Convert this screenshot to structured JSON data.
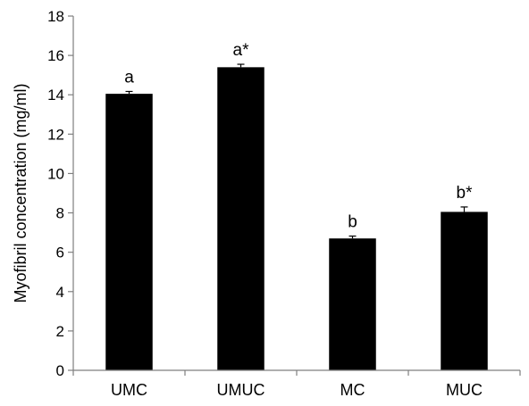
{
  "chart_data": {
    "type": "bar",
    "title": "",
    "xlabel": "",
    "ylabel": "Myofibril concentration (mg/ml)",
    "ylim": [
      0,
      18
    ],
    "ytick_step": 2,
    "yticks": [
      "0",
      "2",
      "4",
      "6",
      "8",
      "10",
      "12",
      "14",
      "16",
      "18"
    ],
    "categories": [
      "UMC",
      "UMUC",
      "MC",
      "MUC"
    ],
    "values": [
      14.05,
      15.4,
      6.7,
      8.05
    ],
    "errors": [
      0.12,
      0.15,
      0.12,
      0.25
    ],
    "bar_labels": [
      "a",
      "a*",
      "b",
      "b*"
    ],
    "grid": false,
    "legend": "none",
    "bar_color": "#000000",
    "axis_color": "#7f7f7f"
  }
}
